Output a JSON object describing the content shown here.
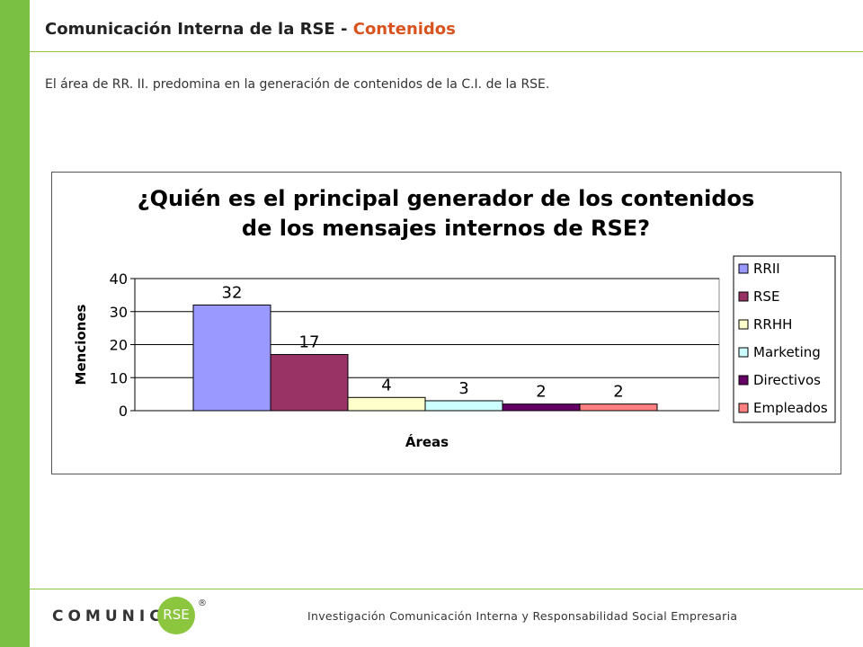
{
  "header": {
    "title_main": "Comunicación Interna de la RSE - ",
    "title_accent": "Contenidos"
  },
  "subtitle": "El área de RR. II. predomina en la generación de contenidos de la C.I. de la RSE.",
  "chart_data": {
    "type": "bar",
    "title_line1": "¿Quién es el principal generador de los contenidos",
    "title_line2": "de los mensajes internos de RSE?",
    "xlabel": "Áreas",
    "ylabel": "Menciones",
    "ylim": [
      0,
      40
    ],
    "yticks": [
      "0",
      "10",
      "20",
      "30",
      "40"
    ],
    "grid": true,
    "legend_placement": "right",
    "series": [
      {
        "name": "RRII",
        "value": 32,
        "label": "32",
        "color": "#9999ff"
      },
      {
        "name": "RSE",
        "value": 17,
        "label": "17",
        "color": "#993366"
      },
      {
        "name": "RRHH",
        "value": 4,
        "label": "4",
        "color": "#ffffcc"
      },
      {
        "name": "Marketing",
        "value": 3,
        "label": "3",
        "color": "#ccffff"
      },
      {
        "name": "Directivos",
        "value": 2,
        "label": "2",
        "color": "#660066"
      },
      {
        "name": "Empleados",
        "value": 2,
        "label": "2",
        "color": "#ff8080"
      }
    ]
  },
  "footer": {
    "text": "Investigación Comunicación Interna y Responsabilidad Social Empresaria",
    "logo_word": "COMUNICA",
    "logo_circle": "RSE",
    "logo_reg": "®"
  },
  "colors": {
    "sidebar": "#7ac143",
    "accent": "#d9531e"
  }
}
